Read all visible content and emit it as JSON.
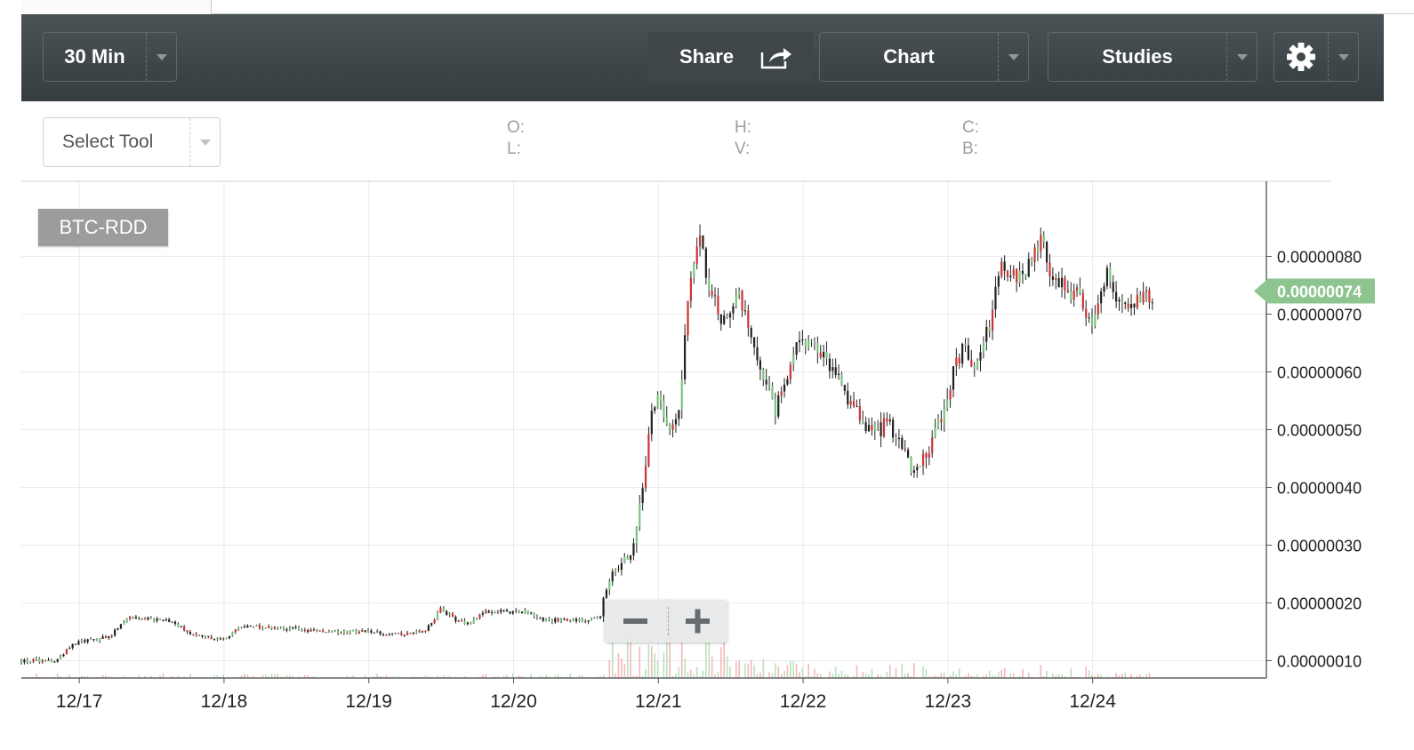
{
  "toolbar": {
    "interval_label": "30 Min",
    "share_label": "Share",
    "chart_label": "Chart",
    "studies_label": "Studies"
  },
  "info": {
    "select_tool_label": "Select Tool",
    "open_label": "O:",
    "low_label": "L:",
    "high_label": "H:",
    "volume_label": "V:",
    "close_label": "C:",
    "b_label": "B:"
  },
  "symbol": "BTC-RDD",
  "colors": {
    "up": "#7bc47f",
    "down": "#cc3333",
    "neutral": "#222222",
    "price_tag": "#8dc48f"
  },
  "icons": [
    "share-icon",
    "gear-icon",
    "chevron-down-icon",
    "zoom-out-icon",
    "zoom-in-icon"
  ],
  "chart_data": {
    "type": "candlestick",
    "symbol": "BTC-RDD",
    "interval": "30 Min",
    "x_tick_labels": [
      "12/17",
      "12/18",
      "12/19",
      "12/20",
      "12/21",
      "12/22",
      "12/23",
      "12/24"
    ],
    "y_tick_labels": [
      "0.00000010",
      "0.00000020",
      "0.00000030",
      "0.00000040",
      "0.00000050",
      "0.00000060",
      "0.00000070",
      "0.00000080"
    ],
    "y_ticks": [
      10,
      20,
      30,
      40,
      50,
      60,
      70,
      80
    ],
    "ylim": [
      7,
      93
    ],
    "y_unit_scale": "1e-8",
    "x_start_day": 16.6,
    "x_end_day": 24.42,
    "x_max_day": 25.2,
    "last_price_label": "0.00000074",
    "last_price": 74,
    "grid": true,
    "volume_bars": true,
    "price_path": [
      [
        16.6,
        10
      ],
      [
        16.85,
        10
      ],
      [
        16.95,
        13
      ],
      [
        17.2,
        14
      ],
      [
        17.35,
        17.5
      ],
      [
        17.6,
        17
      ],
      [
        17.75,
        15
      ],
      [
        17.9,
        14
      ],
      [
        18.0,
        13.5
      ],
      [
        18.1,
        16
      ],
      [
        18.5,
        15.5
      ],
      [
        18.8,
        15
      ],
      [
        19.0,
        15
      ],
      [
        19.2,
        14.5
      ],
      [
        19.4,
        15.5
      ],
      [
        19.5,
        19
      ],
      [
        19.6,
        17
      ],
      [
        19.7,
        16.5
      ],
      [
        19.8,
        18.5
      ],
      [
        20.1,
        18.5
      ],
      [
        20.2,
        17
      ],
      [
        20.5,
        17
      ],
      [
        20.6,
        17.5
      ],
      [
        20.62,
        21
      ],
      [
        20.7,
        26
      ],
      [
        20.8,
        28
      ],
      [
        20.88,
        38
      ],
      [
        20.95,
        52
      ],
      [
        21.0,
        58
      ],
      [
        21.05,
        49
      ],
      [
        21.15,
        54
      ],
      [
        21.2,
        72
      ],
      [
        21.28,
        84
      ],
      [
        21.35,
        75
      ],
      [
        21.45,
        68
      ],
      [
        21.55,
        74
      ],
      [
        21.65,
        66
      ],
      [
        21.75,
        58
      ],
      [
        21.8,
        53
      ],
      [
        21.9,
        61
      ],
      [
        21.97,
        65
      ],
      [
        22.1,
        64
      ],
      [
        22.15,
        62
      ],
      [
        22.3,
        56
      ],
      [
        22.4,
        52
      ],
      [
        22.5,
        50
      ],
      [
        22.6,
        51
      ],
      [
        22.7,
        47
      ],
      [
        22.75,
        42
      ],
      [
        22.85,
        46
      ],
      [
        22.95,
        52
      ],
      [
        23.0,
        57
      ],
      [
        23.1,
        64
      ],
      [
        23.2,
        61
      ],
      [
        23.3,
        69
      ],
      [
        23.35,
        78
      ],
      [
        23.5,
        76
      ],
      [
        23.6,
        80
      ],
      [
        23.65,
        83
      ],
      [
        23.7,
        78
      ],
      [
        23.8,
        75
      ],
      [
        23.9,
        73
      ],
      [
        24.0,
        68
      ],
      [
        24.05,
        74
      ],
      [
        24.1,
        77
      ],
      [
        24.2,
        71
      ],
      [
        24.3,
        72
      ],
      [
        24.42,
        73
      ]
    ]
  }
}
